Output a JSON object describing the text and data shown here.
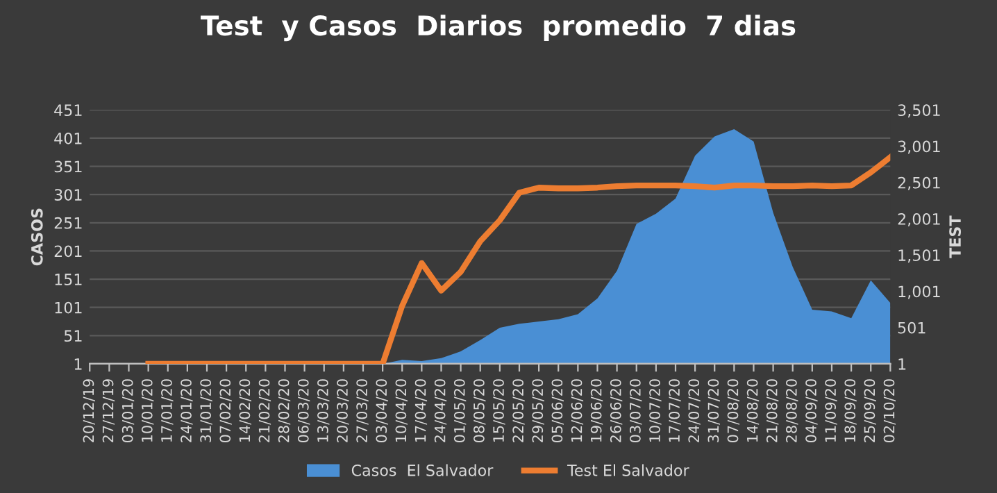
{
  "chart_data": {
    "type": "line",
    "title": "Test  y Casos  Diarios  promedio  7 dias",
    "ylabel": "CASOS",
    "y2label": "TEST",
    "categories": [
      "20/12/19",
      "27/12/19",
      "03/01/20",
      "10/01/20",
      "17/01/20",
      "24/01/20",
      "31/01/20",
      "07/02/20",
      "14/02/20",
      "21/02/20",
      "28/02/20",
      "06/03/20",
      "13/03/20",
      "20/03/20",
      "27/03/20",
      "03/04/20",
      "10/04/20",
      "17/04/20",
      "24/04/20",
      "01/05/20",
      "08/05/20",
      "15/05/20",
      "22/05/20",
      "29/05/20",
      "05/06/20",
      "12/06/20",
      "19/06/20",
      "26/06/20",
      "03/07/20",
      "10/07/20",
      "17/07/20",
      "24/07/20",
      "31/07/20",
      "07/08/20",
      "14/08/20",
      "21/08/20",
      "28/08/20",
      "04/09/20",
      "11/09/20",
      "18/09/20",
      "25/09/20",
      "02/10/20"
    ],
    "series": [
      {
        "name": "Casos  El Salvador",
        "type": "area",
        "color": "#4a8fd4",
        "values": [
          null,
          null,
          null,
          1,
          1,
          1,
          1,
          1,
          1,
          1,
          1,
          1,
          1,
          1,
          1,
          1,
          8,
          6,
          11,
          23,
          43,
          65,
          72,
          76,
          80,
          89,
          117,
          166,
          249,
          267,
          294,
          370,
          404,
          417,
          395,
          269,
          173,
          97,
          94,
          82,
          149,
          109
        ]
      },
      {
        "name": "Test El Salvador",
        "axis": "y2",
        "color": "#ed7d31",
        "values": [
          null,
          null,
          null,
          1,
          1,
          1,
          1,
          1,
          1,
          1,
          1,
          1,
          1,
          1,
          1,
          1,
          800,
          1390,
          1010,
          1270,
          1690,
          1980,
          2360,
          2430,
          2420,
          2420,
          2430,
          2450,
          2460,
          2460,
          2460,
          2450,
          2430,
          2460,
          2460,
          2450,
          2450,
          2460,
          2450,
          2460,
          2640,
          2850
        ]
      }
    ],
    "ylim": [
      1,
      451
    ],
    "yticks": [
      1,
      51,
      101,
      151,
      201,
      251,
      301,
      351,
      401,
      451
    ],
    "y2lim": [
      1,
      3501
    ],
    "y2ticks": [
      1,
      {
        "value": 501,
        "label": "501"
      },
      {
        "value": 1001,
        "label": "1,001"
      },
      {
        "value": 1501,
        "label": "1,501"
      },
      {
        "value": 2001,
        "label": "2,001"
      },
      {
        "value": 2501,
        "label": "2,501"
      },
      {
        "value": 3001,
        "label": "3,001"
      },
      {
        "value": 3501,
        "label": "3,501"
      }
    ],
    "grid": "y",
    "legend": "bottom",
    "line_style": "solid",
    "marker": "none"
  }
}
